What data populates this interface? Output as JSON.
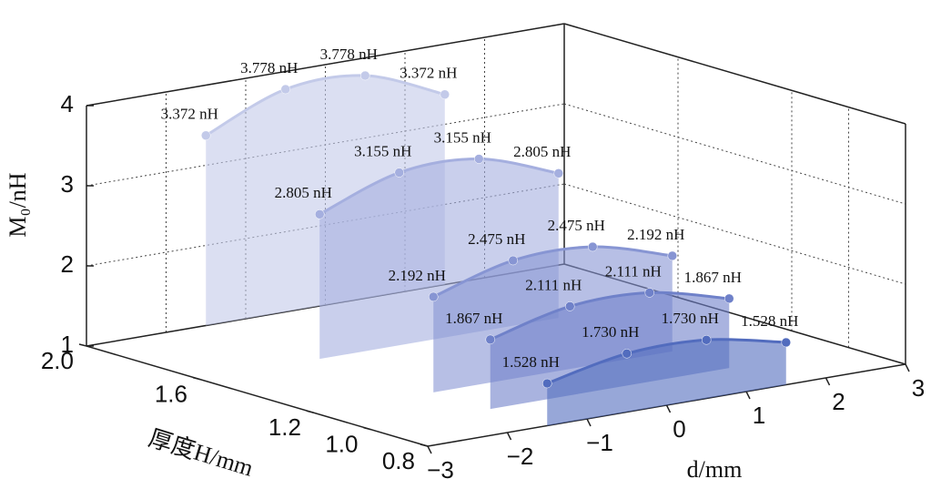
{
  "chart_data": {
    "type": "ribbon",
    "x_label": "d/mm",
    "y_label": "厚度H/mm",
    "z_label": "M₀/nH",
    "x": [
      -1.5,
      -0.5,
      0.5,
      1.5
    ],
    "xlim": [
      -3,
      3
    ],
    "xticks": [
      {
        "value": -3,
        "label": "−3"
      },
      {
        "value": -2,
        "label": "−2"
      },
      {
        "value": -1,
        "label": "−1"
      },
      0,
      1,
      2,
      3
    ],
    "ylim": [
      0.8,
      2.0
    ],
    "yticks": [
      {
        "value": 2.0,
        "label": "2.0"
      },
      1.6,
      1.2,
      {
        "value": 1.0,
        "label": "1.0"
      },
      0.8
    ],
    "zlim": [
      1,
      4
    ],
    "zticks": [
      1,
      2,
      3,
      4
    ],
    "grid": true,
    "series": [
      {
        "depth": 2.0,
        "color": "#c3cae9",
        "values": [
          3.372,
          3.778,
          3.778,
          3.372
        ],
        "value_labels": [
          "3.372 nH",
          "3.778 nH",
          "3.778 nH",
          "3.372 nH"
        ]
      },
      {
        "depth": 1.6,
        "color": "#a5afdf",
        "values": [
          2.805,
          3.155,
          3.155,
          2.805
        ],
        "value_labels": [
          "2.805 nH",
          "3.155 nH",
          "3.155 nH",
          "2.805 nH"
        ]
      },
      {
        "depth": 1.2,
        "color": "#8795d3",
        "values": [
          2.192,
          2.475,
          2.475,
          2.192
        ],
        "value_labels": [
          "2.192 nH",
          "2.475 nH",
          "2.475 nH",
          "2.192 nH"
        ]
      },
      {
        "depth": 1.0,
        "color": "#6f81c9",
        "values": [
          1.867,
          2.111,
          2.111,
          1.867
        ],
        "value_labels": [
          "1.867 nH",
          "2.111 nH",
          "2.111 nH",
          "1.867 nH"
        ]
      },
      {
        "depth": 0.8,
        "color": "#526cbe",
        "values": [
          1.528,
          1.73,
          1.73,
          1.528
        ],
        "value_labels": [
          "1.528 nH",
          "1.730 nH",
          "1.730 nH",
          "1.528 nH"
        ]
      }
    ]
  }
}
